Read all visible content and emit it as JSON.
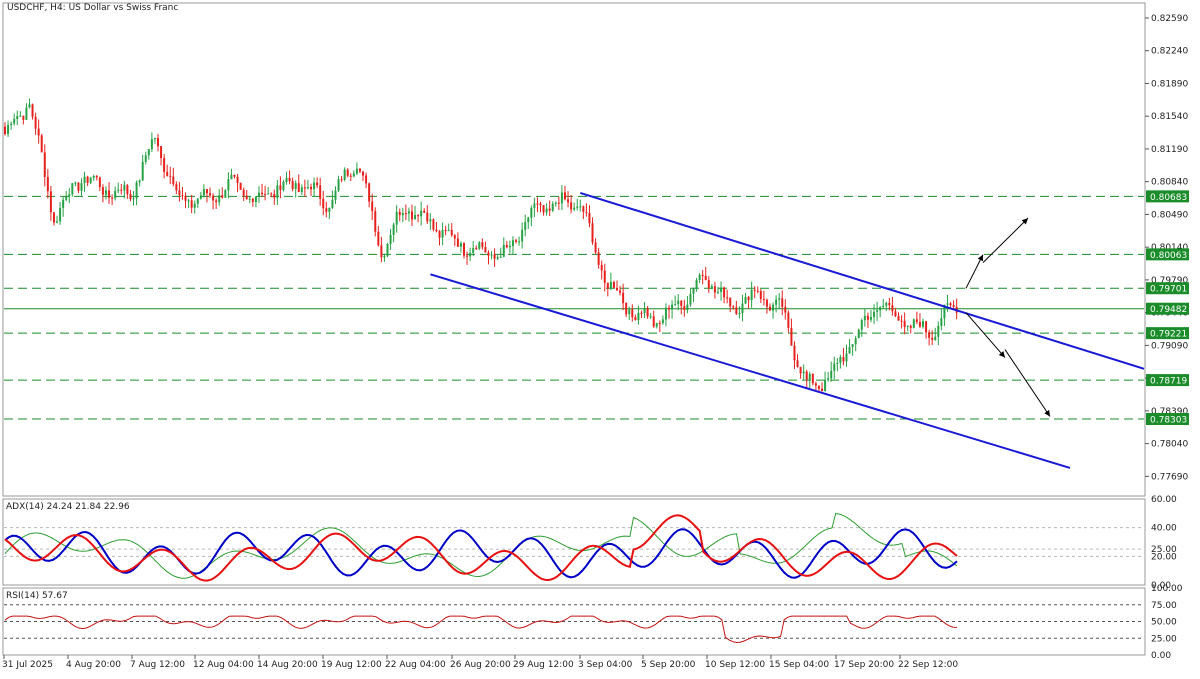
{
  "header": {
    "title": "USDCHF, H4:  US Dollar vs Swiss Franc"
  },
  "colors": {
    "bull": "#26a245",
    "bear": "#e8201c",
    "channel": "#1a1ad6",
    "level_line": "#1a8c2a",
    "adx_main": "#2f9e33",
    "plus_di": "#0000c8",
    "minus_di": "#e81010",
    "rsi": "#c41414"
  },
  "price_axis": {
    "ticks": [
      "0.82590",
      "0.82240",
      "0.81890",
      "0.81540",
      "0.81190",
      "0.80840",
      "0.80490",
      "0.80140",
      "0.79790",
      "0.79440",
      "0.79090",
      "0.78740",
      "0.78390",
      "0.78040",
      "0.77690"
    ]
  },
  "levels": [
    {
      "label": "0.80683",
      "value": 0.80683,
      "style": "dashed"
    },
    {
      "label": "0.80063",
      "value": 0.80063,
      "style": "dashed"
    },
    {
      "label": "0.79701",
      "value": 0.79701,
      "style": "dashed"
    },
    {
      "label": "0.79482",
      "value": 0.79482,
      "style": "solid"
    },
    {
      "label": "0.79221",
      "value": 0.79221,
      "style": "dashed"
    },
    {
      "label": "0.78719",
      "value": 0.78719,
      "style": "dashed"
    },
    {
      "label": "0.78303",
      "value": 0.78303,
      "style": "dashed"
    }
  ],
  "adx": {
    "label": "ADX(14) 24.24 21.84 22.96",
    "ticks": [
      "60.00",
      "40.00",
      "25.00",
      "20.00",
      "0.00"
    ]
  },
  "rsi": {
    "label": "RSI(14) 57.67",
    "ticks": [
      "100.00",
      "75.00",
      "50.00",
      "25.00",
      "0.00"
    ]
  },
  "time_axis": {
    "labels": [
      "31 Jul 2025",
      "4 Aug 20:00",
      "7 Aug 12:00",
      "12 Aug 04:00",
      "14 Aug 20:00",
      "19 Aug 12:00",
      "22 Aug 04:00",
      "26 Aug 20:00",
      "29 Aug 12:00",
      "3 Sep 04:00",
      "5 Sep 20:00",
      "10 Sep 12:00",
      "15 Sep 04:00",
      "17 Sep 20:00",
      "22 Sep 12:00"
    ]
  },
  "chart_data": {
    "type": "candlestick",
    "symbol": "USDCHF",
    "timeframe": "H4",
    "ylim": [
      0.7748,
      0.8275
    ],
    "price_path": [
      {
        "date": "30 Jul 2025",
        "close": 0.8135
      },
      {
        "date": "31 Jul 2025",
        "close": 0.817
      },
      {
        "date": "1 Aug 2025",
        "close": 0.8045
      },
      {
        "date": "4 Aug 2025",
        "close": 0.809
      },
      {
        "date": "5 Aug 2025",
        "close": 0.8075
      },
      {
        "date": "7 Aug 2025",
        "close": 0.807
      },
      {
        "date": "8 Aug 2025",
        "close": 0.813
      },
      {
        "date": "12 Aug 2025",
        "close": 0.8065
      },
      {
        "date": "13 Aug 2025",
        "close": 0.8065
      },
      {
        "date": "14 Aug 2025",
        "close": 0.808
      },
      {
        "date": "15 Aug 2025",
        "close": 0.8065
      },
      {
        "date": "18 Aug 2025",
        "close": 0.808
      },
      {
        "date": "19 Aug 2025",
        "close": 0.808
      },
      {
        "date": "20 Aug 2025",
        "close": 0.806
      },
      {
        "date": "21 Aug 2025",
        "close": 0.811
      },
      {
        "date": "22 Aug 2025",
        "close": 0.801
      },
      {
        "date": "25 Aug 2025",
        "close": 0.806
      },
      {
        "date": "26 Aug 2025",
        "close": 0.804
      },
      {
        "date": "27 Aug 2025",
        "close": 0.802
      },
      {
        "date": "28 Aug 2025",
        "close": 0.801
      },
      {
        "date": "29 Aug 2025",
        "close": 0.8005
      },
      {
        "date": "1 Sep 2025",
        "close": 0.805
      },
      {
        "date": "2 Sep 2025",
        "close": 0.806
      },
      {
        "date": "3 Sep 2025",
        "close": 0.806
      },
      {
        "date": "4 Sep 2025",
        "close": 0.798
      },
      {
        "date": "5 Sep 2025",
        "close": 0.7945
      },
      {
        "date": "8 Sep 2025",
        "close": 0.7935
      },
      {
        "date": "9 Sep 2025",
        "close": 0.7955
      },
      {
        "date": "10 Sep 2025",
        "close": 0.7985
      },
      {
        "date": "11 Sep 2025",
        "close": 0.795
      },
      {
        "date": "12 Sep 2025",
        "close": 0.7965
      },
      {
        "date": "15 Sep 2025",
        "close": 0.7945
      },
      {
        "date": "16 Sep 2025",
        "close": 0.7865
      },
      {
        "date": "17 Sep 2025",
        "close": 0.7875
      },
      {
        "date": "18 Sep 2025",
        "close": 0.792
      },
      {
        "date": "19 Sep 2025",
        "close": 0.7955
      },
      {
        "date": "22 Sep 2025",
        "close": 0.793
      },
      {
        "date": "23 Sep 2025",
        "close": 0.7925
      },
      {
        "date": "24 Sep 2025",
        "close": 0.7955
      }
    ],
    "channel": {
      "upper": [
        {
          "date": "3 Sep 2025",
          "price": 0.8072
        },
        {
          "date": "end",
          "price": 0.7884
        }
      ],
      "lower": [
        {
          "date": "26 Aug 2025",
          "price": 0.7985
        },
        {
          "date": "end",
          "price": 0.7778
        }
      ]
    },
    "scenarios": [
      {
        "direction": "up",
        "target": 0.8045
      },
      {
        "direction": "down",
        "target": 0.7833
      }
    ],
    "adx_ylim": [
      0,
      60
    ],
    "rsi_ylim": [
      0,
      100
    ]
  }
}
